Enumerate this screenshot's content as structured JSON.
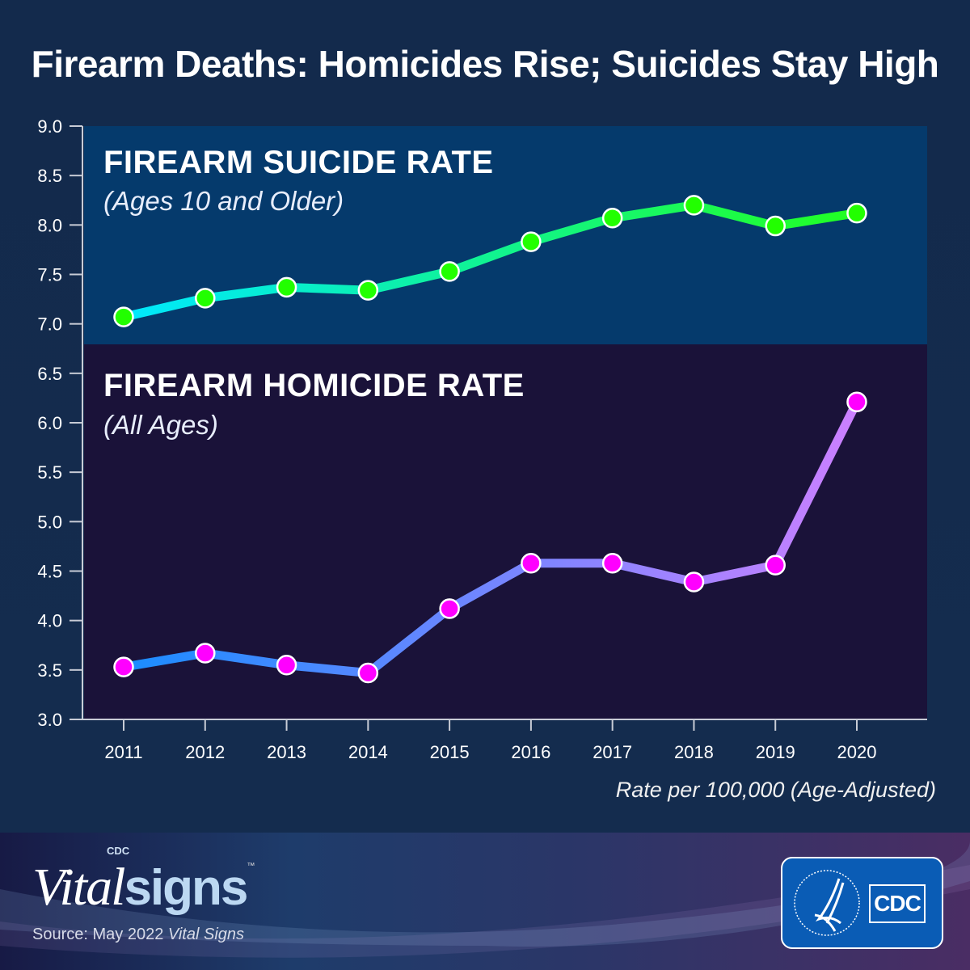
{
  "title": "Firearm Deaths: Homicides Rise; Suicides Stay High",
  "panels": {
    "suicide": {
      "title": "FIREARM SUICIDE RATE",
      "subtitle": "(Ages 10 and Older)"
    },
    "homicide": {
      "title": "FIREARM HOMICIDE RATE",
      "subtitle": "(All Ages)"
    }
  },
  "footnote": "Rate per 100,000 (Age-Adjusted)",
  "footer": {
    "logo_cdc": "CDC",
    "logo_vital": "Vital",
    "logo_signs": "signs",
    "logo_tm": "™",
    "source": "Source: May 2022 ",
    "source_italic": "Vital Signs",
    "badge_text": "CDC"
  },
  "colors": {
    "suicide_panel": "#053a6c",
    "homicide_panel": "#1a1239",
    "suicide_line_start": "#00e8ff",
    "suicide_line_end": "#22ff22",
    "suicide_marker": "#22ff00",
    "homicide_line_start": "#1a8cff",
    "homicide_line_end": "#cc80ff",
    "homicide_marker": "#ff00ff"
  },
  "chart_data": {
    "type": "line",
    "title": "Firearm Deaths: Homicides Rise; Suicides Stay High",
    "xlabel": "",
    "ylabel": "Rate per 100,000 (Age-Adjusted)",
    "x": [
      "2011",
      "2012",
      "2013",
      "2014",
      "2015",
      "2016",
      "2017",
      "2018",
      "2019",
      "2020"
    ],
    "ylim": [
      3.0,
      9.0
    ],
    "yticks": [
      "3.0",
      "3.5",
      "4.0",
      "4.5",
      "5.0",
      "5.5",
      "6.0",
      "6.5",
      "7.0",
      "7.5",
      "8.0",
      "8.5",
      "9.0"
    ],
    "grid": false,
    "series": [
      {
        "name": "FIREARM SUICIDE RATE",
        "values": [
          7.07,
          7.26,
          7.37,
          7.34,
          7.53,
          7.83,
          8.07,
          8.2,
          7.99,
          8.12
        ]
      },
      {
        "name": "FIREARM HOMICIDE RATE",
        "values": [
          3.53,
          3.67,
          3.55,
          3.47,
          4.12,
          4.58,
          4.58,
          4.39,
          4.56,
          6.21
        ]
      }
    ]
  }
}
